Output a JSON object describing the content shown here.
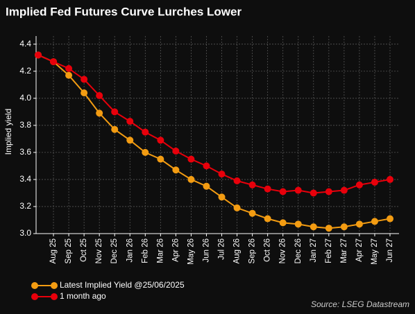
{
  "chart_data": {
    "type": "line",
    "title": "Implied Fed Futures Curve Lurches Lower",
    "y_label": "Implied yield",
    "source": "Source: LSEG Datastream",
    "categories": [
      null,
      "Aug 25",
      "Sep 25",
      "Oct 25",
      "Nov 25",
      "Dec 25",
      "Jan 26",
      "Feb 26",
      "Mar 26",
      "Apr 26",
      "May 26",
      "Jun 26",
      "Jul 26",
      "Aug 26",
      "Sep 26",
      "Oct 26",
      "Nov 26",
      "Dec 26",
      "Jan 27",
      "Feb 27",
      "Mar 27",
      "Apr 27",
      "May 27",
      "Jun 27"
    ],
    "series": [
      {
        "name": "Latest Implied Yield @25/06/2025",
        "color": "#f39c12",
        "values": [
          4.32,
          4.27,
          4.17,
          4.04,
          3.89,
          3.77,
          3.69,
          3.6,
          3.55,
          3.47,
          3.4,
          3.35,
          3.27,
          3.19,
          3.15,
          3.11,
          3.08,
          3.07,
          3.05,
          3.04,
          3.05,
          3.07,
          3.09,
          3.11
        ]
      },
      {
        "name": "1 month ago",
        "color": "#e8000b",
        "values": [
          4.32,
          4.27,
          4.22,
          4.14,
          4.02,
          3.9,
          3.83,
          3.75,
          3.69,
          3.61,
          3.55,
          3.5,
          3.44,
          3.39,
          3.36,
          3.33,
          3.31,
          3.32,
          3.3,
          3.31,
          3.32,
          3.36,
          3.38,
          3.4
        ]
      }
    ],
    "ylim": [
      3.0,
      4.46
    ],
    "yticks": [
      {
        "value": 3.0,
        "label": "3.0"
      },
      3.2,
      3.4,
      3.6,
      3.8,
      {
        "value": 4.0,
        "label": "4.0"
      },
      4.2,
      4.4
    ],
    "grid": true,
    "legend": "bottom-left"
  }
}
